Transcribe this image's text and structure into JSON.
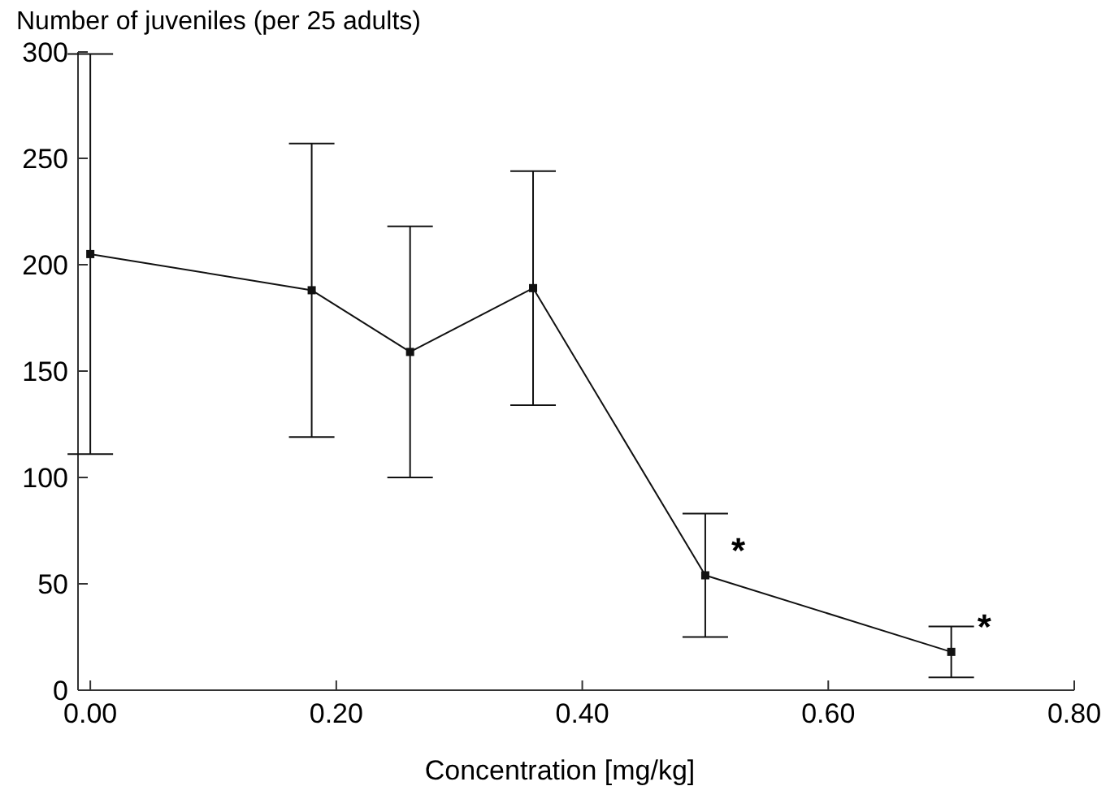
{
  "chart_data": {
    "type": "line",
    "ylabel": "Number of juveniles (per 25 adults)",
    "xlabel": "Concentration [mg/kg]",
    "x": [
      0.0,
      0.18,
      0.26,
      0.36,
      0.5,
      0.7
    ],
    "series": [
      {
        "color": "#111111",
        "values": [
          205,
          188,
          159,
          189,
          54,
          18
        ],
        "errors": [
          94,
          69,
          59,
          55,
          29,
          12
        ]
      }
    ],
    "xlim": [
      -0.01,
      0.8
    ],
    "xticks": [
      {
        "value": 0,
        "label": "0.00"
      },
      {
        "value": 0.2,
        "label": "0.20"
      },
      {
        "value": 0.4,
        "label": "0.40"
      },
      {
        "value": 0.6,
        "label": "0.60"
      },
      {
        "value": 0.8,
        "label": "0.80"
      }
    ],
    "ylim": [
      0,
      300
    ],
    "yticks": [
      0,
      50,
      100,
      150,
      200,
      250,
      300
    ],
    "marker": "square",
    "line_style": "solid",
    "grid": false,
    "annotations": [
      {
        "text": "*",
        "x": 0.5,
        "y": 54
      },
      {
        "text": "*",
        "x": 0.7,
        "y": 18
      }
    ]
  }
}
